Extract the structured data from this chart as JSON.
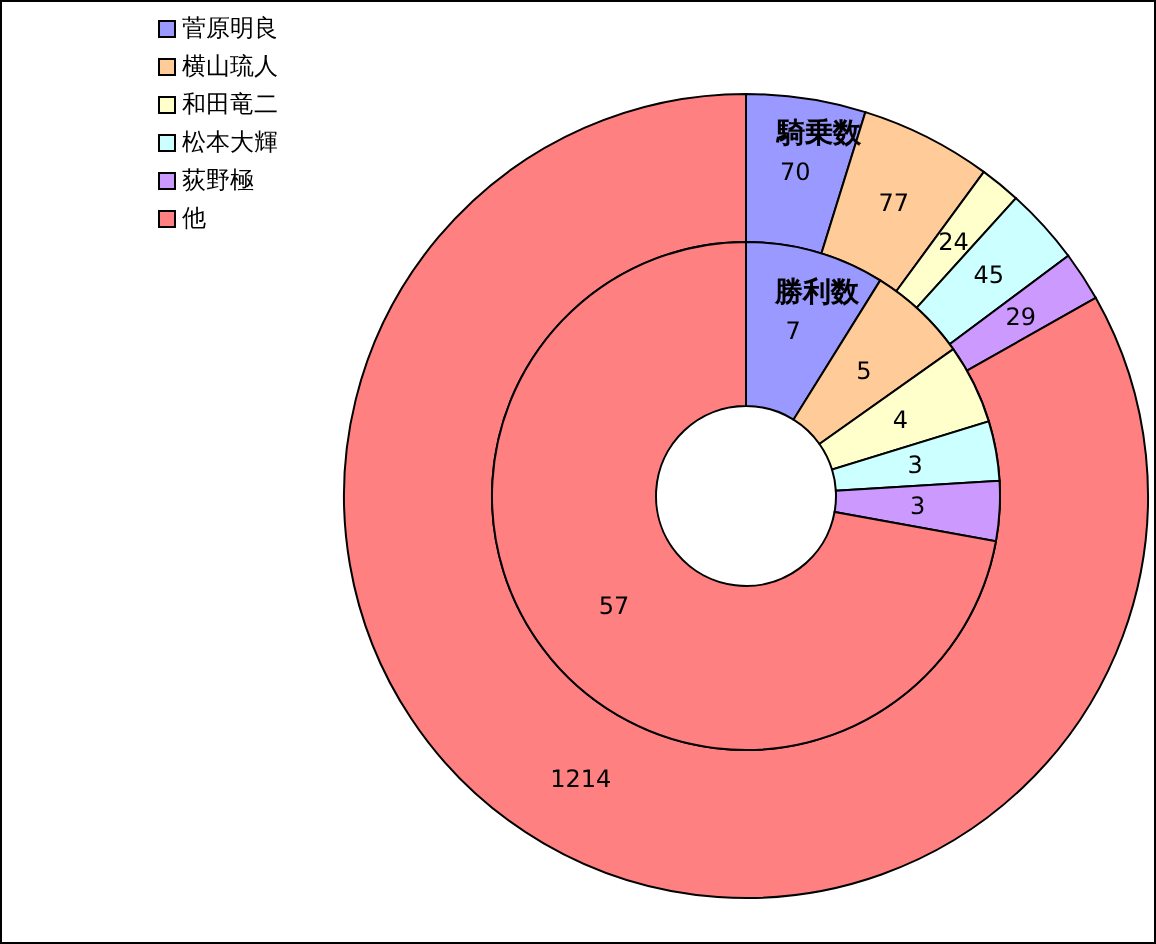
{
  "chart_data": {
    "type": "donut",
    "categories": [
      "菅原明良",
      "横山琉人",
      "和田竜二",
      "松本大輝",
      "荻野極",
      "他"
    ],
    "colors": [
      "#9999ff",
      "#ffcc99",
      "#ffffcc",
      "#ccffff",
      "#cc99ff",
      "#ff8080"
    ],
    "series": [
      {
        "name": "騎乗数",
        "values": [
          70,
          77,
          24,
          45,
          29,
          1214
        ]
      },
      {
        "name": "勝利数",
        "values": [
          7,
          5,
          4,
          3,
          3,
          57
        ]
      }
    ],
    "data_labels": true,
    "legend": "top left"
  }
}
